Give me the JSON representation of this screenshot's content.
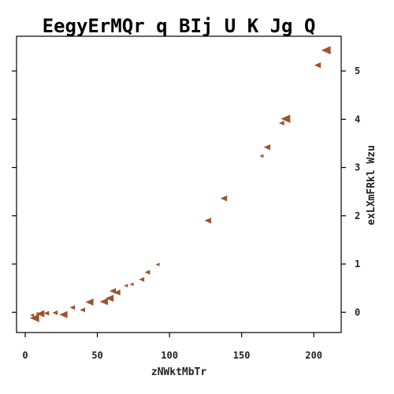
{
  "chart_data": {
    "type": "scatter",
    "title": "EegyErMQr q BIj U K Jg Q",
    "xlabel": "zNWktMbTr",
    "ylabel": "exLXmFRkl Wzu",
    "xlim": [
      -6,
      219
    ],
    "ylim": [
      -0.42,
      5.72
    ],
    "x_ticks": [
      0,
      50,
      100,
      150,
      200
    ],
    "y_ticks": [
      0,
      1,
      2,
      3,
      4,
      5
    ],
    "y_axis_side": "right",
    "grid": false,
    "legend": "none",
    "marker_color": "#a0522d",
    "points": [
      {
        "x": 5,
        "y": -0.06,
        "size": 3,
        "dir": "left"
      },
      {
        "x": 7,
        "y": -0.12,
        "size": 7,
        "dir": "left"
      },
      {
        "x": 9,
        "y": -0.03,
        "size": 3,
        "dir": "right"
      },
      {
        "x": 11,
        "y": -0.03,
        "size": 6,
        "dir": "left"
      },
      {
        "x": 15,
        "y": -0.02,
        "size": 4,
        "dir": "left"
      },
      {
        "x": 21,
        "y": -0.01,
        "size": 4,
        "dir": "left"
      },
      {
        "x": 27,
        "y": -0.05,
        "size": 6,
        "dir": "left"
      },
      {
        "x": 33,
        "y": 0.1,
        "size": 4,
        "dir": "left"
      },
      {
        "x": 40,
        "y": 0.05,
        "size": 4,
        "dir": "left"
      },
      {
        "x": 45,
        "y": 0.21,
        "size": 6,
        "dir": "left"
      },
      {
        "x": 55,
        "y": 0.22,
        "size": 6,
        "dir": "left"
      },
      {
        "x": 59,
        "y": 0.29,
        "size": 6,
        "dir": "left"
      },
      {
        "x": 61,
        "y": 0.44,
        "size": 5,
        "dir": "left"
      },
      {
        "x": 64,
        "y": 0.41,
        "size": 5,
        "dir": "left"
      },
      {
        "x": 70,
        "y": 0.55,
        "size": 3,
        "dir": "left"
      },
      {
        "x": 74,
        "y": 0.58,
        "size": 3,
        "dir": "left"
      },
      {
        "x": 81,
        "y": 0.68,
        "size": 4,
        "dir": "left"
      },
      {
        "x": 85,
        "y": 0.83,
        "size": 4,
        "dir": "left"
      },
      {
        "x": 92,
        "y": 0.99,
        "size": 3,
        "dir": "left"
      },
      {
        "x": 127,
        "y": 1.9,
        "size": 5,
        "dir": "left"
      },
      {
        "x": 138,
        "y": 2.36,
        "size": 5,
        "dir": "left"
      },
      {
        "x": 164,
        "y": 3.24,
        "size": 3,
        "dir": "left"
      },
      {
        "x": 168,
        "y": 3.42,
        "size": 5,
        "dir": "left"
      },
      {
        "x": 178,
        "y": 3.92,
        "size": 4,
        "dir": "left"
      },
      {
        "x": 181,
        "y": 4.01,
        "size": 7,
        "dir": "left"
      },
      {
        "x": 203,
        "y": 5.12,
        "size": 5,
        "dir": "left"
      },
      {
        "x": 209,
        "y": 5.43,
        "size": 7,
        "dir": "left"
      }
    ]
  }
}
